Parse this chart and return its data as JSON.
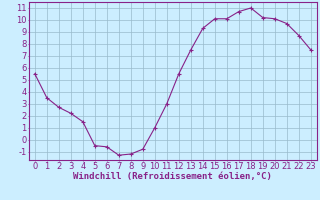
{
  "x": [
    0,
    1,
    2,
    3,
    4,
    5,
    6,
    7,
    8,
    9,
    10,
    11,
    12,
    13,
    14,
    15,
    16,
    17,
    18,
    19,
    20,
    21,
    22,
    23
  ],
  "y": [
    5.5,
    3.5,
    2.7,
    2.2,
    1.5,
    -0.5,
    -0.6,
    -1.3,
    -1.2,
    -0.8,
    1.0,
    3.0,
    5.5,
    7.5,
    9.3,
    10.1,
    10.1,
    10.7,
    11.0,
    10.2,
    10.1,
    9.7,
    8.7,
    7.5
  ],
  "line_color": "#882288",
  "marker": "+",
  "marker_size": 3,
  "bg_color": "#cceeff",
  "grid_color": "#99bbcc",
  "spine_color": "#882288",
  "xlabel": "Windchill (Refroidissement éolien,°C)",
  "ylabel": "",
  "xlim": [
    -0.5,
    23.5
  ],
  "ylim": [
    -1.7,
    11.5
  ],
  "yticks": [
    -1,
    0,
    1,
    2,
    3,
    4,
    5,
    6,
    7,
    8,
    9,
    10,
    11
  ],
  "xticks": [
    0,
    1,
    2,
    3,
    4,
    5,
    6,
    7,
    8,
    9,
    10,
    11,
    12,
    13,
    14,
    15,
    16,
    17,
    18,
    19,
    20,
    21,
    22,
    23
  ],
  "label_fontsize": 6.5,
  "tick_fontsize": 6.0
}
